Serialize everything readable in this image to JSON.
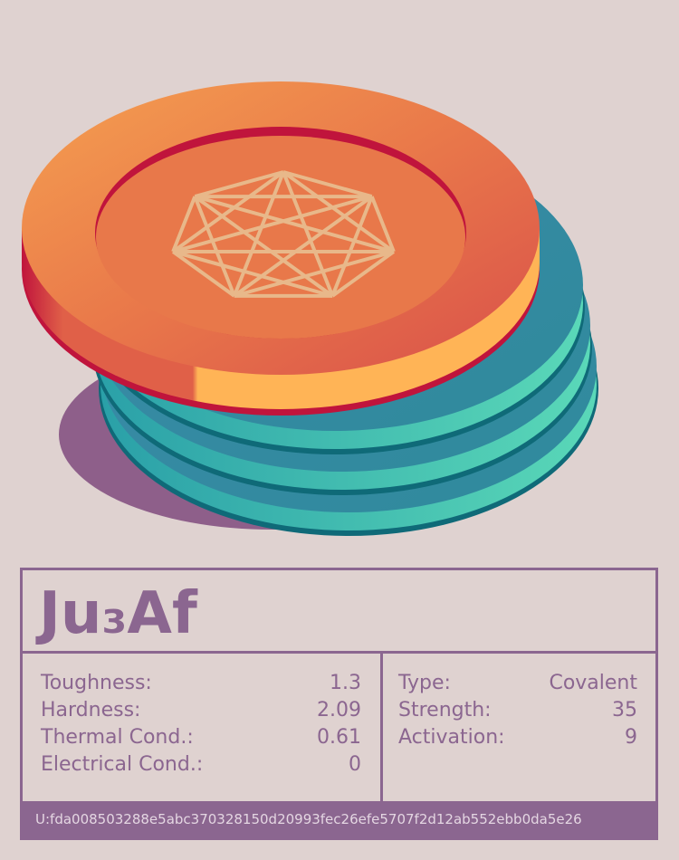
{
  "card": {
    "title": "Ju₃Af",
    "left_stats": [
      [
        "Toughness:",
        "1.3"
      ],
      [
        "Hardness:",
        "2.09"
      ],
      [
        "Thermal Cond.:",
        "0.61"
      ],
      [
        "Electrical Cond.:",
        "0"
      ]
    ],
    "right_stats": [
      [
        "Type:",
        "Covalent"
      ],
      [
        "Strength:",
        "35"
      ],
      [
        "Activation:",
        "9"
      ]
    ],
    "footer": "U:fda008503288e5abc370328150d20993fec26efe5707f2d12ab552ebb0da5e26"
  }
}
